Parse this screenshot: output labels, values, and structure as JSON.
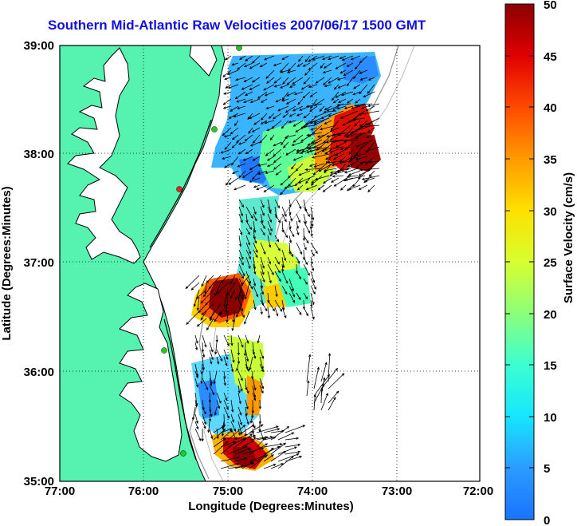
{
  "title": "Southern Mid-Atlantic Raw Velocities 2007/06/17 1500 GMT",
  "x_axis": {
    "label": "Longitude (Degrees:Minutes)",
    "ticks": [
      "77:00",
      "76:00",
      "75:00",
      "74:00",
      "73:00",
      "72:00"
    ]
  },
  "y_axis": {
    "label": "Latitude (Degrees:Minutes)",
    "ticks": [
      "39:00",
      "38:00",
      "37:00",
      "36:00",
      "35:00"
    ]
  },
  "colorbar": {
    "label": "Surface Velocity (cm/s)",
    "ticks": [
      "0",
      "5",
      "10",
      "15",
      "20",
      "25",
      "30",
      "35",
      "40",
      "45",
      "50"
    ]
  },
  "colors": {
    "land": "#55f2b0",
    "title": "#1010e0",
    "station_marker": "#22cc22",
    "station_marker_alt": "#ee2222"
  },
  "grid": "dotted"
}
